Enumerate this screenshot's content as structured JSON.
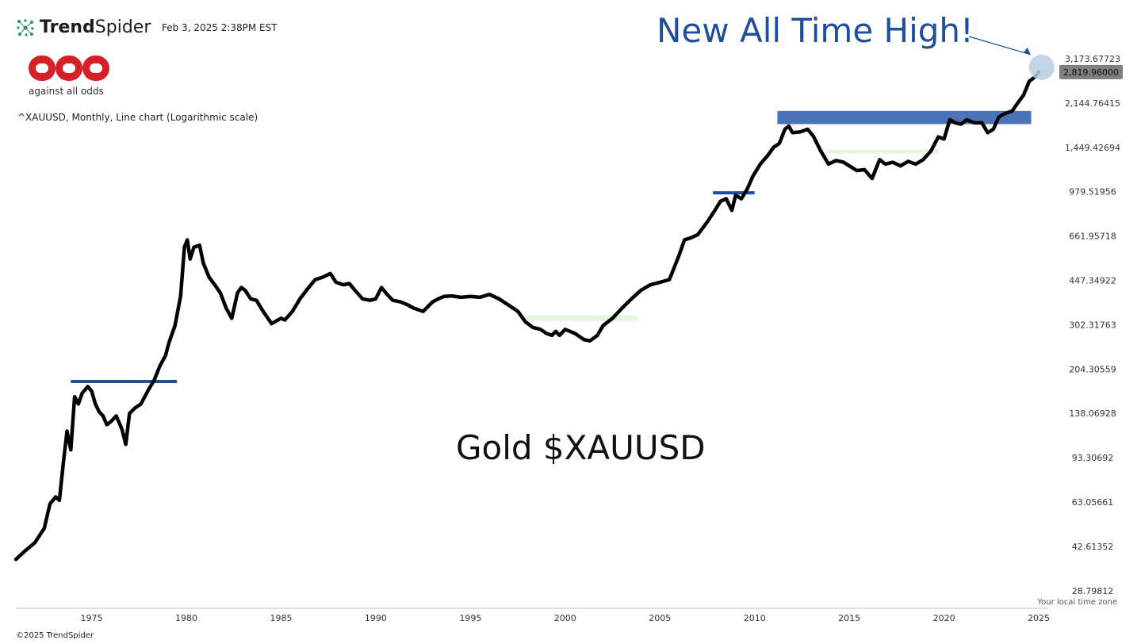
{
  "header": {
    "brand_bold": "Trend",
    "brand_light": "Spider",
    "timestamp": "Feb 3, 2025 2:38PM EST",
    "logo_text": "against all odds",
    "subtitle": "^XAUUSD, Monthly, Line chart (Logarithmic scale)"
  },
  "footer": {
    "timezone": "Your local time zone",
    "copyright": "©2025 TrendSpider"
  },
  "colors": {
    "line": "#000000",
    "headline": "#1f4e9c",
    "resistance": "#1f4e9c",
    "zone_fill": "#4a73b8",
    "support_zone": "#e6f7e0",
    "logo_red": "#d62027",
    "current_price_badge": "#7f7f7f",
    "ath_marker": "#b9cde3"
  },
  "chart_data": {
    "type": "line",
    "title": "Gold $XAUUSD",
    "annotation": "New All Time High!",
    "scale": "log",
    "ylim": [
      25,
      3500
    ],
    "xlim": [
      1971.0,
      2025.5
    ],
    "y_tick_labels": [
      "3,173.67723",
      "2,144.76415",
      "1,449.42694",
      "979.51956",
      "661.95718",
      "447.34922",
      "302.31763",
      "204.30559",
      "138.06928",
      "93.30692",
      "63.05661",
      "42.61352",
      "28.79812"
    ],
    "y_tick_values": [
      3173.67723,
      2144.76415,
      1449.42694,
      979.51956,
      661.95718,
      447.34922,
      302.31763,
      204.30559,
      138.06928,
      93.30692,
      63.05661,
      42.61352,
      28.79812
    ],
    "x_tick_labels": [
      "1975",
      "1980",
      "1985",
      "1990",
      "1995",
      "2000",
      "2005",
      "2010",
      "2015",
      "2020",
      "2025"
    ],
    "x_tick_values": [
      1975,
      1980,
      1985,
      1990,
      1995,
      2000,
      2005,
      2010,
      2015,
      2020,
      2025
    ],
    "current_price_label": "2,819.96000",
    "current_price": 2819.96,
    "resistance_lines": [
      {
        "x0": 1973.9,
        "x1": 1979.5,
        "y": 183
      },
      {
        "x0": 2007.8,
        "x1": 2010.0,
        "y": 970
      }
    ],
    "zones": [
      {
        "x0": 2011.2,
        "x1": 2024.6,
        "y0": 1780,
        "y1": 2000
      }
    ],
    "support_zones": [
      {
        "x0": 1997.8,
        "x1": 2003.8,
        "y0": 312,
        "y1": 328
      },
      {
        "x0": 2013.8,
        "x1": 2019.7,
        "y0": 1370,
        "y1": 1420
      }
    ],
    "ath_marker": {
      "x": 2024.9,
      "y": 2819.96
    },
    "series": [
      {
        "x": [
          1971.0,
          1971.5,
          1972.0,
          1972.5,
          1972.8,
          1973.1,
          1973.3,
          1973.5,
          1973.7,
          1973.9,
          1974.1,
          1974.3,
          1974.5,
          1974.8,
          1975.0,
          1975.2,
          1975.4,
          1975.6,
          1975.8,
          1976.0,
          1976.3,
          1976.6,
          1976.8,
          1977.0,
          1977.3,
          1977.6,
          1978.0,
          1978.3,
          1978.6,
          1978.9,
          1979.1,
          1979.4,
          1979.7,
          1979.9,
          1980.05,
          1980.2,
          1980.4,
          1980.7,
          1980.9,
          1981.2,
          1981.5,
          1981.8,
          1982.1,
          1982.4,
          1982.7,
          1982.9,
          1983.1,
          1983.4,
          1983.7,
          1984.0,
          1984.5,
          1985.0,
          1985.2,
          1985.6,
          1986.0,
          1986.4,
          1986.8,
          1987.2,
          1987.6,
          1987.9,
          1988.3,
          1988.6,
          1988.9,
          1989.3,
          1989.7,
          1990.0,
          1990.3,
          1990.6,
          1990.9,
          1991.3,
          1991.7,
          1992.0,
          1992.5,
          1993.0,
          1993.3,
          1993.6,
          1994.0,
          1994.5,
          1995.0,
          1995.5,
          1996.0,
          1996.5,
          1997.0,
          1997.5,
          1997.9,
          1998.3,
          1998.7,
          1999.0,
          1999.3,
          1999.5,
          1999.7,
          2000.0,
          2000.5,
          2001.0,
          2001.3,
          2001.7,
          2002.0,
          2002.5,
          2003.0,
          2003.5,
          2004.0,
          2004.5,
          2005.0,
          2005.5,
          2006.0,
          2006.3,
          2006.6,
          2007.0,
          2007.5,
          2007.9,
          2008.2,
          2008.5,
          2008.8,
          2009.0,
          2009.3,
          2009.6,
          2009.9,
          2010.3,
          2010.7,
          2011.0,
          2011.3,
          2011.6,
          2011.8,
          2012.0,
          2012.4,
          2012.8,
          2013.1,
          2013.5,
          2013.9,
          2014.3,
          2014.7,
          2015.0,
          2015.4,
          2015.8,
          2016.2,
          2016.6,
          2016.9,
          2017.3,
          2017.7,
          2018.1,
          2018.5,
          2018.9,
          2019.3,
          2019.7,
          2020.0,
          2020.3,
          2020.6,
          2020.9,
          2021.2,
          2021.6,
          2022.0,
          2022.3,
          2022.6,
          2022.9,
          2023.2,
          2023.6,
          2023.9,
          2024.2,
          2024.5,
          2024.8,
          2025.0
        ],
        "y": [
          38,
          41,
          44,
          50,
          62,
          66,
          64,
          88,
          118,
          100,
          160,
          150,
          165,
          175,
          168,
          150,
          140,
          135,
          125,
          128,
          135,
          120,
          105,
          138,
          145,
          150,
          170,
          185,
          210,
          230,
          260,
          300,
          390,
          600,
          640,
          540,
          600,
          610,
          520,
          460,
          430,
          400,
          350,
          320,
          400,
          420,
          410,
          380,
          375,
          345,
          305,
          320,
          315,
          340,
          380,
          415,
          450,
          460,
          475,
          440,
          430,
          435,
          410,
          380,
          375,
          380,
          420,
          395,
          375,
          370,
          360,
          350,
          340,
          370,
          380,
          388,
          390,
          385,
          388,
          385,
          395,
          380,
          360,
          340,
          310,
          295,
          290,
          280,
          275,
          285,
          275,
          290,
          280,
          265,
          262,
          275,
          300,
          320,
          350,
          380,
          410,
          430,
          440,
          450,
          555,
          640,
          650,
          670,
          750,
          830,
          900,
          920,
          830,
          950,
          920,
          1000,
          1120,
          1250,
          1350,
          1450,
          1500,
          1700,
          1750,
          1650,
          1660,
          1700,
          1600,
          1400,
          1250,
          1290,
          1270,
          1230,
          1180,
          1190,
          1100,
          1300,
          1250,
          1270,
          1230,
          1280,
          1250,
          1300,
          1400,
          1590,
          1560,
          1850,
          1800,
          1780,
          1850,
          1800,
          1800,
          1650,
          1700,
          1900,
          1950,
          2000,
          2150,
          2300,
          2600,
          2700,
          2820
        ]
      }
    ]
  }
}
